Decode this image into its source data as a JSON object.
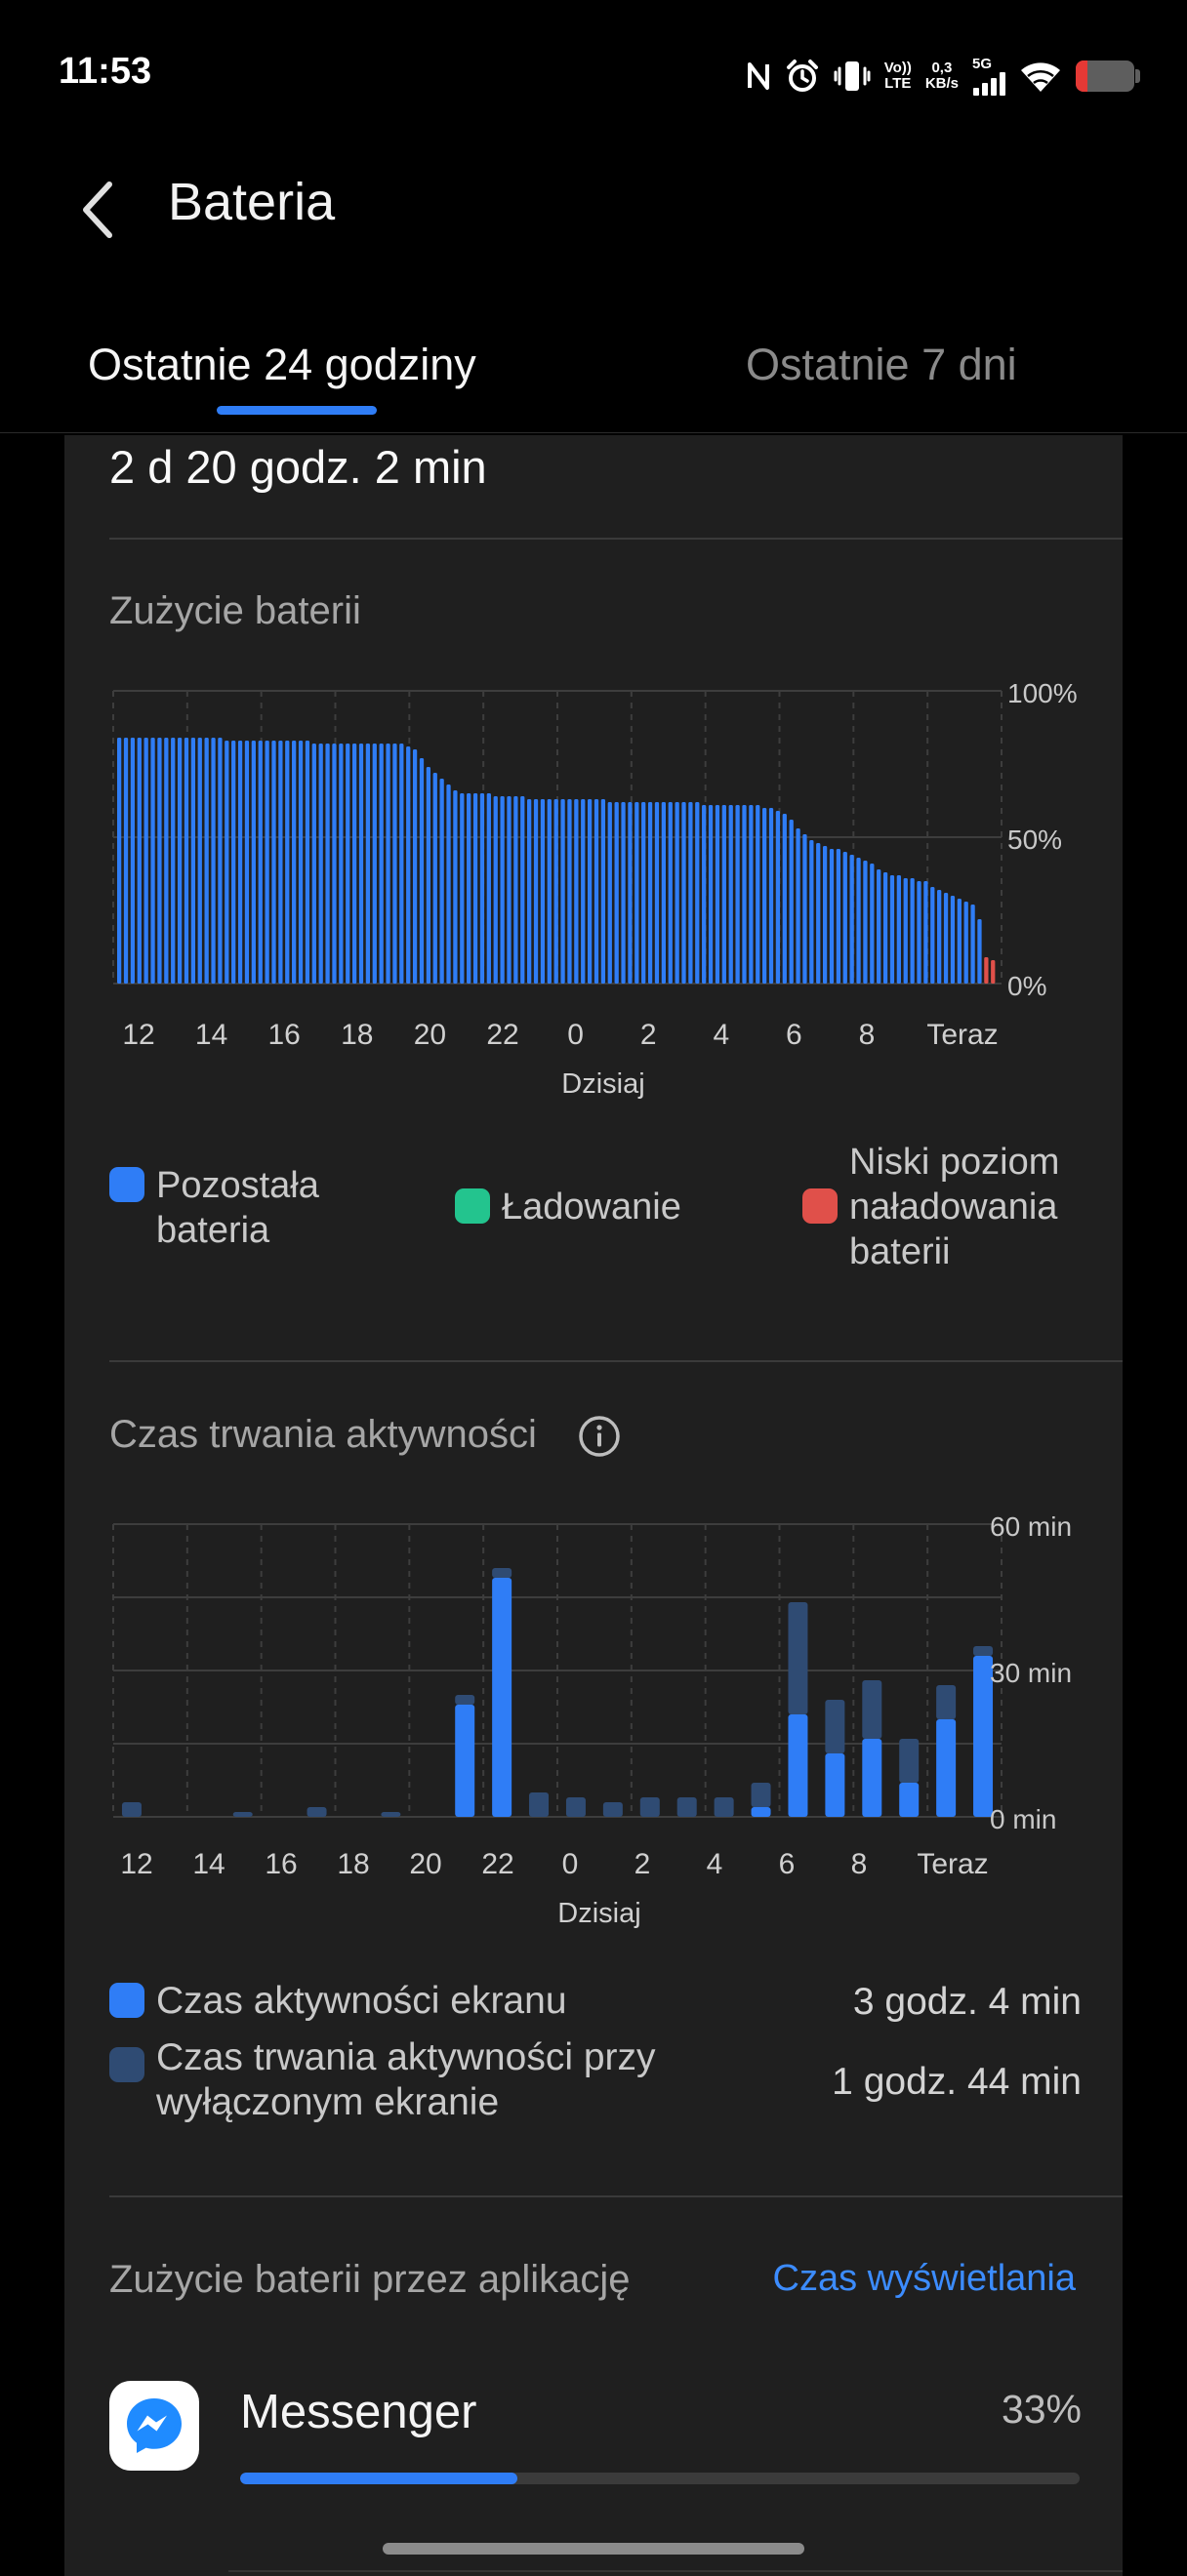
{
  "status_bar": {
    "time": "11:53",
    "volte_top": "Vo))",
    "volte_bottom": "LTE",
    "speed_value": "0,3",
    "speed_unit": "KB/s",
    "network": "5G",
    "battery_level_pct": 20,
    "icons": [
      "nfc-icon",
      "alarm-icon",
      "vibrate-icon",
      "volte-icon",
      "net-speed-icon",
      "signal-icon",
      "wifi-icon",
      "battery-icon"
    ]
  },
  "header": {
    "title": "Bateria"
  },
  "tabs": [
    {
      "label": "Ostatnie 24 godziny",
      "selected": true
    },
    {
      "label": "Ostatnie 7 dni",
      "selected": false
    }
  ],
  "summary": {
    "duration": "2 d 20 godz. 2 min"
  },
  "colors": {
    "accent": "#2F7DF6",
    "charging": "#23C48E",
    "low_battery": "#E0504A",
    "screen_off": "#2F4B73",
    "card_bg": "#1F1F1F"
  },
  "battery_usage": {
    "title": "Zużycie baterii",
    "legend": [
      {
        "label": "Pozostała bateria",
        "color": "#2F7DF6"
      },
      {
        "label": "Ładowanie",
        "color": "#23C48E"
      },
      {
        "label": "Niski poziom naładowania baterii",
        "color": "#E0504A"
      }
    ]
  },
  "activity": {
    "title": "Czas trwania aktywności",
    "legend": [
      {
        "label": "Czas aktywności ekranu",
        "value": "3 godz. 4 min",
        "color": "#2F7DF6"
      },
      {
        "label": "Czas trwania aktywności przy wyłączonym ekranie",
        "value": "1 godz. 44 min",
        "color": "#2F4B73"
      }
    ]
  },
  "chart_data": [
    {
      "type": "bar",
      "title": "Zużycie baterii",
      "xlabel": "Dzisiaj",
      "ylabel": "",
      "ylim": [
        0,
        100
      ],
      "y_ticks": [
        "100%",
        "50%",
        "0%"
      ],
      "x_ticks": [
        "12",
        "14",
        "16",
        "18",
        "20",
        "22",
        "0",
        "2",
        "4",
        "6",
        "8",
        "Teraz"
      ],
      "series": [
        {
          "name": "Pozostała bateria",
          "values": [
            84,
            84,
            84,
            84,
            84,
            84,
            84,
            84,
            84,
            84,
            84,
            84,
            84,
            84,
            84,
            84,
            83,
            83,
            83,
            83,
            83,
            83,
            83,
            83,
            83,
            83,
            83,
            83,
            83,
            82,
            82,
            82,
            82,
            82,
            82,
            82,
            82,
            82,
            82,
            82,
            82,
            82,
            82,
            81,
            80,
            77,
            74,
            72,
            70,
            68,
            66,
            65,
            65,
            65,
            65,
            65,
            64,
            64,
            64,
            64,
            64,
            63,
            63,
            63,
            63,
            63,
            63,
            63,
            63,
            63,
            63,
            63,
            63,
            62,
            62,
            62,
            62,
            62,
            62,
            62,
            62,
            62,
            62,
            62,
            62,
            62,
            62,
            61,
            61,
            61,
            61,
            61,
            61,
            61,
            61,
            61,
            60,
            60,
            59,
            58,
            56,
            53,
            51,
            49,
            48,
            47,
            46,
            46,
            45,
            44,
            43,
            42,
            41,
            39,
            38,
            37,
            37,
            36,
            36,
            35,
            35,
            33,
            32,
            31,
            30,
            29,
            28,
            27,
            22
          ]
        },
        {
          "name": "Niski poziom naładowania baterii",
          "values": [
            9,
            8
          ]
        }
      ],
      "legend": [
        "Pozostała bateria",
        "Ładowanie",
        "Niski poziom naładowania baterii"
      ]
    },
    {
      "type": "bar",
      "title": "Czas trwania aktywności",
      "xlabel": "Dzisiaj",
      "ylabel": "",
      "ylim": [
        0,
        60
      ],
      "y_ticks": [
        "60 min",
        "30 min",
        "0 min"
      ],
      "x_ticks": [
        "12",
        "14",
        "16",
        "18",
        "20",
        "22",
        "0",
        "2",
        "4",
        "6",
        "8",
        "Teraz"
      ],
      "series": [
        {
          "name": "Czas aktywności ekranu",
          "values": [
            0,
            0,
            0,
            0,
            0,
            0,
            0,
            0,
            0,
            23,
            49,
            0,
            0,
            0,
            0,
            0,
            0,
            2,
            21,
            13,
            16,
            7,
            20,
            33
          ]
        },
        {
          "name": "Czas trwania aktywności przy wyłączonym ekranie",
          "values": [
            3,
            0,
            0,
            1,
            0,
            2,
            0,
            1,
            0,
            2,
            2,
            5,
            4,
            3,
            4,
            4,
            4,
            5,
            23,
            11,
            12,
            9,
            7,
            2
          ]
        }
      ],
      "legend": [
        "Czas aktywności ekranu",
        "Czas trwania aktywności przy wyłączonym ekranie"
      ]
    }
  ],
  "apps_section": {
    "title": "Zużycie baterii przez aplikację",
    "action": "Czas wyświetlania",
    "apps": [
      {
        "name": "Messenger",
        "percent": "33%",
        "usage": 0.33,
        "icon": "messenger-icon"
      }
    ]
  }
}
